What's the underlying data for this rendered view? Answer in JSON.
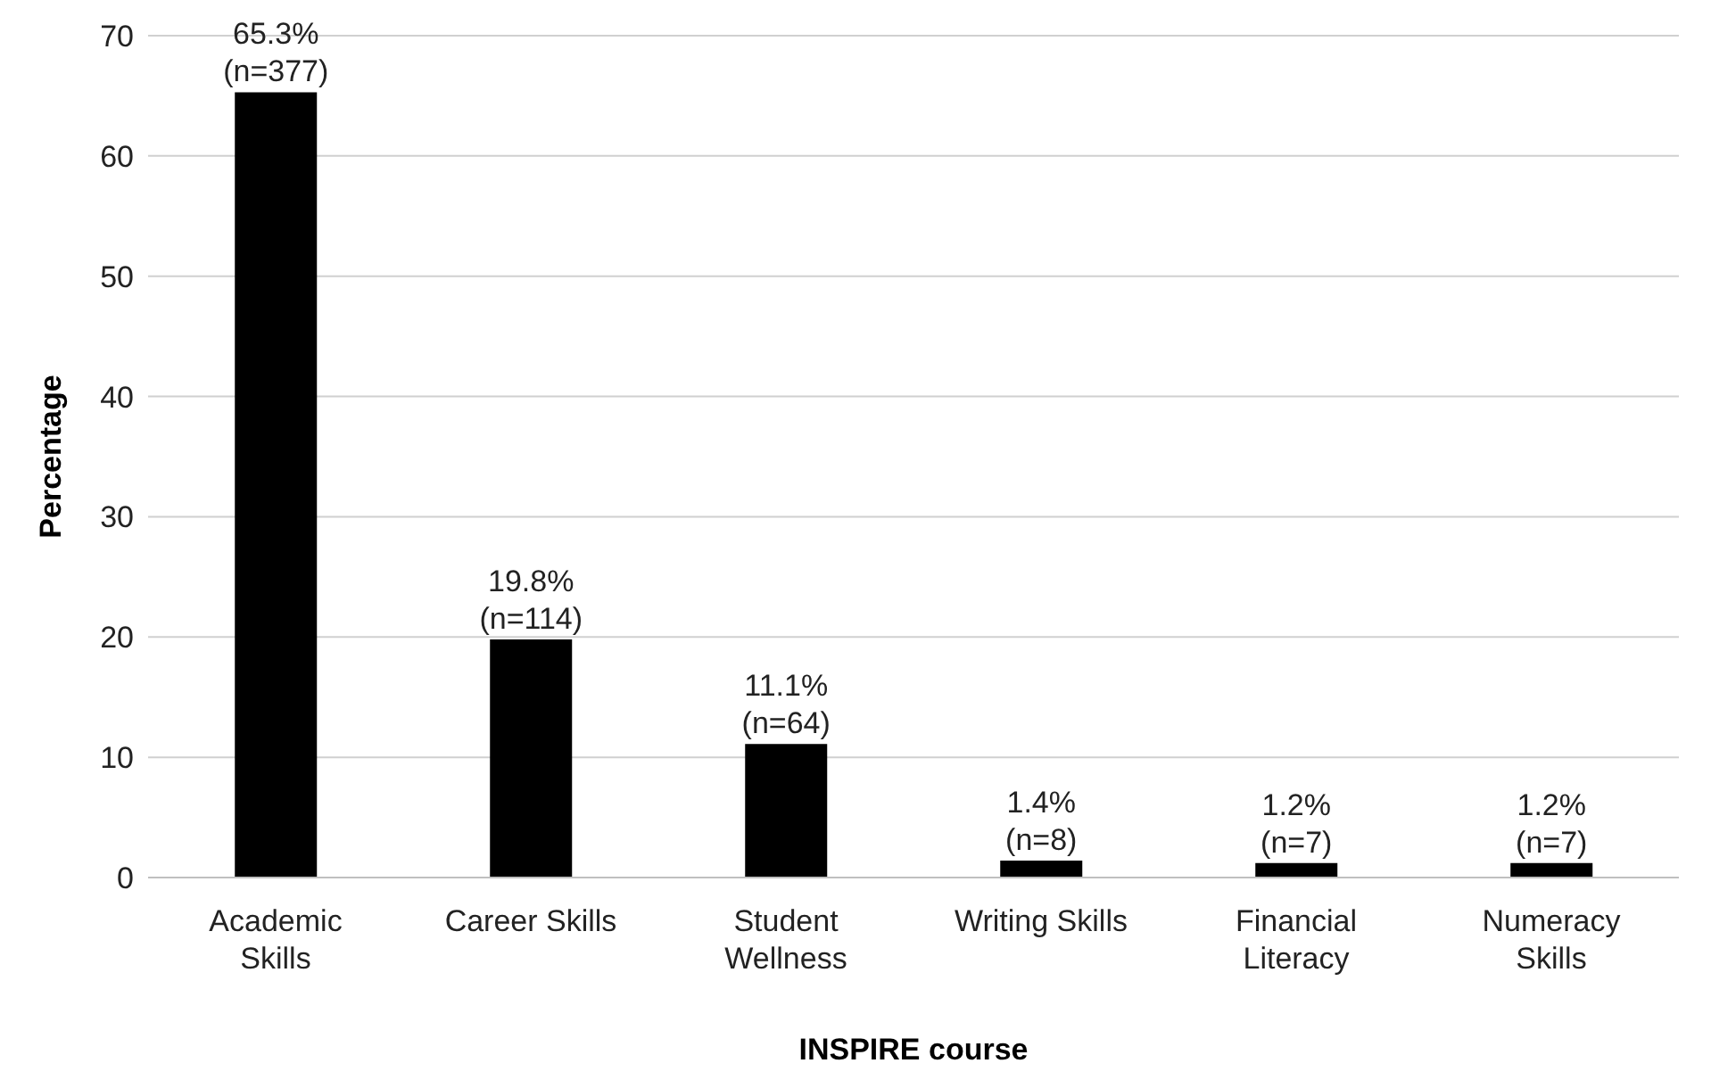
{
  "chart_data": {
    "type": "bar",
    "xlabel": "INSPIRE course",
    "ylabel": "Percentage",
    "categories": [
      "Academic Skills",
      "Career Skills",
      "Student Wellness",
      "Writing Skills",
      "Financial Literacy",
      "Numeracy Skills"
    ],
    "values": [
      65.3,
      19.8,
      11.1,
      1.4,
      1.2,
      1.2
    ],
    "value_labels": [
      "65.3%\n(n=377)",
      "19.8%\n(n=114)",
      "11.1%\n(n=64)",
      "1.4%\n(n=8)",
      "1.2%\n(n=7)",
      "1.2%\n(n=7)"
    ],
    "color": "#000000",
    "ylim": [
      0,
      70
    ],
    "yticks": [
      0,
      10,
      20,
      30,
      40,
      50,
      60,
      70
    ],
    "grid": "y",
    "legend": false
  }
}
